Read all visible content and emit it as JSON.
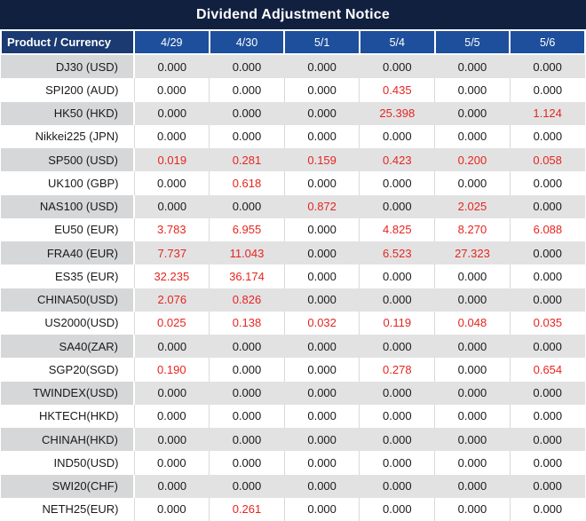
{
  "chart_data": {
    "type": "table",
    "title": "Dividend Adjustment Notice",
    "columns": [
      "Product / Currency",
      "4/29",
      "4/30",
      "5/1",
      "5/4",
      "5/5",
      "5/6"
    ],
    "rows": [
      {
        "product": "DJ30 (USD)",
        "values": [
          "0.000",
          "0.000",
          "0.000",
          "0.000",
          "0.000",
          "0.000"
        ],
        "red": [
          false,
          false,
          false,
          false,
          false,
          false
        ]
      },
      {
        "product": "SPI200 (AUD)",
        "values": [
          "0.000",
          "0.000",
          "0.000",
          "0.435",
          "0.000",
          "0.000"
        ],
        "red": [
          false,
          false,
          false,
          true,
          false,
          false
        ]
      },
      {
        "product": "HK50 (HKD)",
        "values": [
          "0.000",
          "0.000",
          "0.000",
          "25.398",
          "0.000",
          "1.124"
        ],
        "red": [
          false,
          false,
          false,
          true,
          false,
          true
        ]
      },
      {
        "product": "Nikkei225 (JPN)",
        "values": [
          "0.000",
          "0.000",
          "0.000",
          "0.000",
          "0.000",
          "0.000"
        ],
        "red": [
          false,
          false,
          false,
          false,
          false,
          false
        ]
      },
      {
        "product": "SP500 (USD)",
        "values": [
          "0.019",
          "0.281",
          "0.159",
          "0.423",
          "0.200",
          "0.058"
        ],
        "red": [
          true,
          true,
          true,
          true,
          true,
          true
        ]
      },
      {
        "product": "UK100 (GBP)",
        "values": [
          "0.000",
          "0.618",
          "0.000",
          "0.000",
          "0.000",
          "0.000"
        ],
        "red": [
          false,
          true,
          false,
          false,
          false,
          false
        ]
      },
      {
        "product": "NAS100 (USD)",
        "values": [
          "0.000",
          "0.000",
          "0.872",
          "0.000",
          "2.025",
          "0.000"
        ],
        "red": [
          false,
          false,
          true,
          false,
          true,
          false
        ]
      },
      {
        "product": "EU50 (EUR)",
        "values": [
          "3.783",
          "6.955",
          "0.000",
          "4.825",
          "8.270",
          "6.088"
        ],
        "red": [
          true,
          true,
          false,
          true,
          true,
          true
        ]
      },
      {
        "product": "FRA40 (EUR)",
        "values": [
          "7.737",
          "11.043",
          "0.000",
          "6.523",
          "27.323",
          "0.000"
        ],
        "red": [
          true,
          true,
          false,
          true,
          true,
          false
        ]
      },
      {
        "product": "ES35 (EUR)",
        "values": [
          "32.235",
          "36.174",
          "0.000",
          "0.000",
          "0.000",
          "0.000"
        ],
        "red": [
          true,
          true,
          false,
          false,
          false,
          false
        ]
      },
      {
        "product": "CHINA50(USD)",
        "values": [
          "2.076",
          "0.826",
          "0.000",
          "0.000",
          "0.000",
          "0.000"
        ],
        "red": [
          true,
          true,
          false,
          false,
          false,
          false
        ]
      },
      {
        "product": "US2000(USD)",
        "values": [
          "0.025",
          "0.138",
          "0.032",
          "0.119",
          "0.048",
          "0.035"
        ],
        "red": [
          true,
          true,
          true,
          true,
          true,
          true
        ]
      },
      {
        "product": "SA40(ZAR)",
        "values": [
          "0.000",
          "0.000",
          "0.000",
          "0.000",
          "0.000",
          "0.000"
        ],
        "red": [
          false,
          false,
          false,
          false,
          false,
          false
        ]
      },
      {
        "product": "SGP20(SGD)",
        "values": [
          "0.190",
          "0.000",
          "0.000",
          "0.278",
          "0.000",
          "0.654"
        ],
        "red": [
          true,
          false,
          false,
          true,
          false,
          true
        ]
      },
      {
        "product": "TWINDEX(USD)",
        "values": [
          "0.000",
          "0.000",
          "0.000",
          "0.000",
          "0.000",
          "0.000"
        ],
        "red": [
          false,
          false,
          false,
          false,
          false,
          false
        ]
      },
      {
        "product": "HKTECH(HKD)",
        "values": [
          "0.000",
          "0.000",
          "0.000",
          "0.000",
          "0.000",
          "0.000"
        ],
        "red": [
          false,
          false,
          false,
          false,
          false,
          false
        ]
      },
      {
        "product": "CHINAH(HKD)",
        "values": [
          "0.000",
          "0.000",
          "0.000",
          "0.000",
          "0.000",
          "0.000"
        ],
        "red": [
          false,
          false,
          false,
          false,
          false,
          false
        ]
      },
      {
        "product": "IND50(USD)",
        "values": [
          "0.000",
          "0.000",
          "0.000",
          "0.000",
          "0.000",
          "0.000"
        ],
        "red": [
          false,
          false,
          false,
          false,
          false,
          false
        ]
      },
      {
        "product": "SWI20(CHF)",
        "values": [
          "0.000",
          "0.000",
          "0.000",
          "0.000",
          "0.000",
          "0.000"
        ],
        "red": [
          false,
          false,
          false,
          false,
          false,
          false
        ]
      },
      {
        "product": "NETH25(EUR)",
        "values": [
          "0.000",
          "0.261",
          "0.000",
          "0.000",
          "0.000",
          "0.000"
        ],
        "red": [
          false,
          true,
          false,
          false,
          false,
          false
        ]
      }
    ]
  },
  "colors": {
    "title_bg": "#122040",
    "header_first_bg": "#1a3a71",
    "header_date_bg": "#1d4f9c",
    "row_gray_first": "#d6d7d8",
    "row_gray_data": "#e2e2e3",
    "separator": "#d9d9d9",
    "value_text": "#1a1a1a",
    "value_red": "#e6251f"
  }
}
